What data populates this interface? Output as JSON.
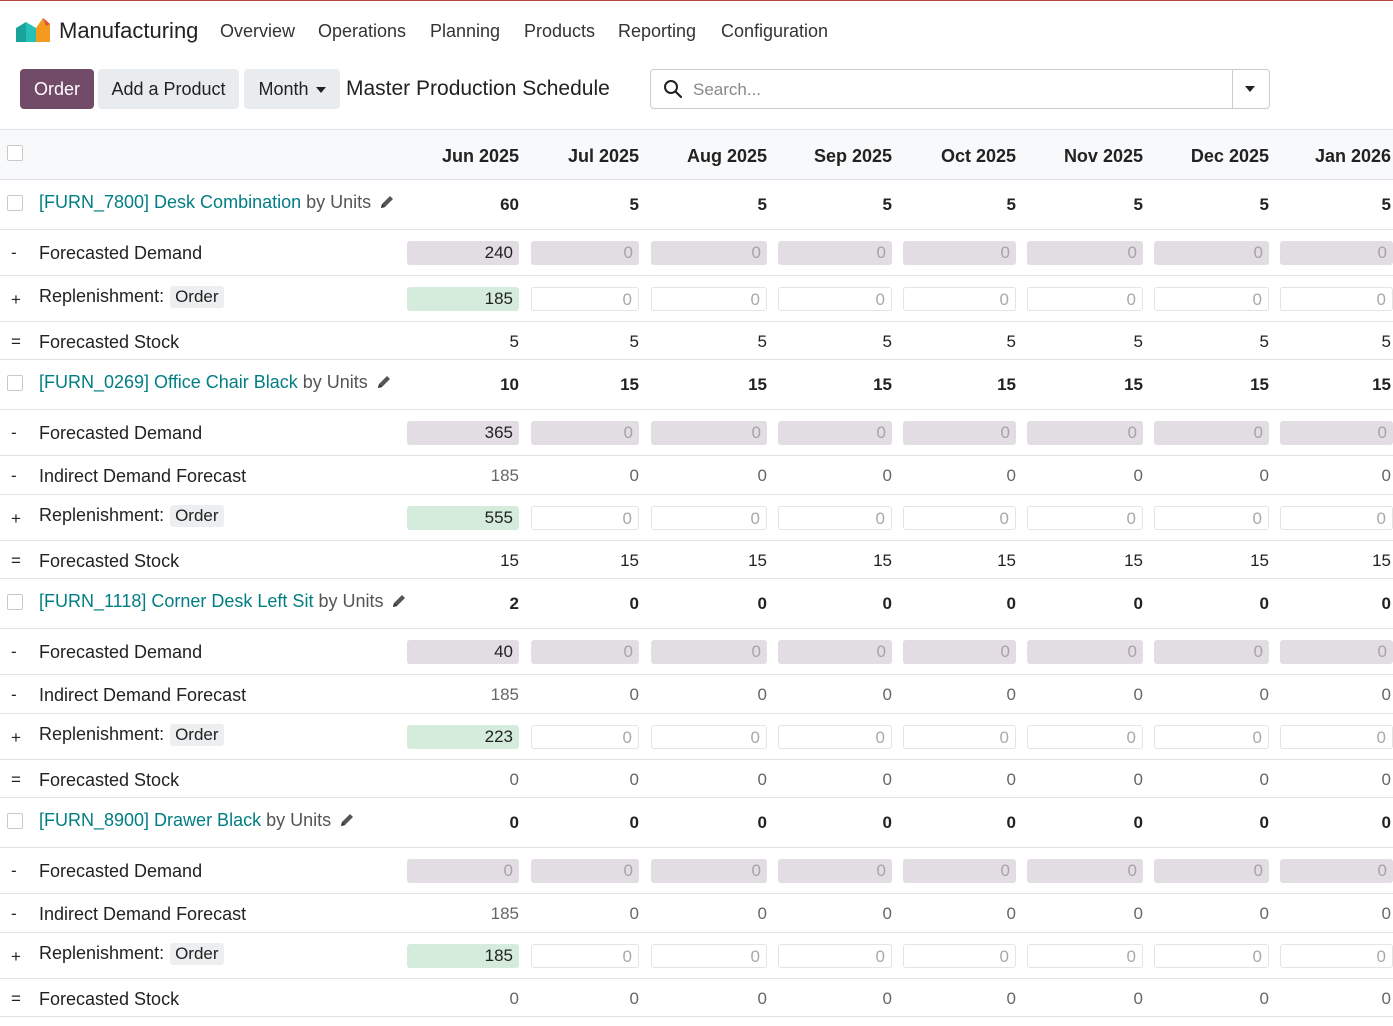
{
  "app": {
    "name": "Manufacturing",
    "nav": [
      "Overview",
      "Operations",
      "Planning",
      "Products",
      "Reporting",
      "Configuration"
    ]
  },
  "controls": {
    "order_label": "Order",
    "add_product_label": "Add a Product",
    "month_label": "Month",
    "page_title": "Master Production Schedule",
    "search_placeholder": "Search..."
  },
  "months": [
    "Jun 2025",
    "Jul 2025",
    "Aug 2025",
    "Sep 2025",
    "Oct 2025",
    "Nov 2025",
    "Dec 2025",
    "Jan 2026"
  ],
  "labels": {
    "by": "by",
    "forecasted_demand": "Forecasted Demand",
    "indirect_demand": "Indirect Demand Forecast",
    "replenishment": "Replenishment:",
    "order_badge": "Order",
    "forecasted_stock": "Forecasted Stock"
  },
  "products": [
    {
      "code_name": "[FURN_7800] Desk Combination",
      "unit": "Units",
      "starting": [
        "60",
        "5",
        "5",
        "5",
        "5",
        "5",
        "5",
        "5"
      ],
      "forecasted_demand": [
        "240",
        "0",
        "0",
        "0",
        "0",
        "0",
        "0",
        "0"
      ],
      "indirect_demand": null,
      "replenishment": [
        "185",
        "0",
        "0",
        "0",
        "0",
        "0",
        "0",
        "0"
      ],
      "forecasted_stock": [
        "5",
        "5",
        "5",
        "5",
        "5",
        "5",
        "5",
        "5"
      ]
    },
    {
      "code_name": "[FURN_0269] Office Chair Black",
      "unit": "Units",
      "starting": [
        "10",
        "15",
        "15",
        "15",
        "15",
        "15",
        "15",
        "15"
      ],
      "forecasted_demand": [
        "365",
        "0",
        "0",
        "0",
        "0",
        "0",
        "0",
        "0"
      ],
      "indirect_demand": [
        "185",
        "0",
        "0",
        "0",
        "0",
        "0",
        "0",
        "0"
      ],
      "replenishment": [
        "555",
        "0",
        "0",
        "0",
        "0",
        "0",
        "0",
        "0"
      ],
      "forecasted_stock": [
        "15",
        "15",
        "15",
        "15",
        "15",
        "15",
        "15",
        "15"
      ]
    },
    {
      "code_name": "[FURN_1118] Corner Desk Left Sit",
      "unit": "Units",
      "starting": [
        "2",
        "0",
        "0",
        "0",
        "0",
        "0",
        "0",
        "0"
      ],
      "forecasted_demand": [
        "40",
        "0",
        "0",
        "0",
        "0",
        "0",
        "0",
        "0"
      ],
      "indirect_demand": [
        "185",
        "0",
        "0",
        "0",
        "0",
        "0",
        "0",
        "0"
      ],
      "replenishment": [
        "223",
        "0",
        "0",
        "0",
        "0",
        "0",
        "0",
        "0"
      ],
      "forecasted_stock": [
        "0",
        "0",
        "0",
        "0",
        "0",
        "0",
        "0",
        "0"
      ]
    },
    {
      "code_name": "[FURN_8900] Drawer Black",
      "unit": "Units",
      "starting": [
        "0",
        "0",
        "0",
        "0",
        "0",
        "0",
        "0",
        "0"
      ],
      "forecasted_demand": [
        "0",
        "0",
        "0",
        "0",
        "0",
        "0",
        "0",
        "0"
      ],
      "indirect_demand": [
        "185",
        "0",
        "0",
        "0",
        "0",
        "0",
        "0",
        "0"
      ],
      "replenishment": [
        "185",
        "0",
        "0",
        "0",
        "0",
        "0",
        "0",
        "0"
      ],
      "forecasted_stock": [
        "0",
        "0",
        "0",
        "0",
        "0",
        "0",
        "0",
        "0"
      ]
    }
  ],
  "colors": {
    "brand": "#714b67",
    "link": "#017e84",
    "demand_cell": "#e2dde2",
    "replenish_cell": "#d5ecdd"
  }
}
